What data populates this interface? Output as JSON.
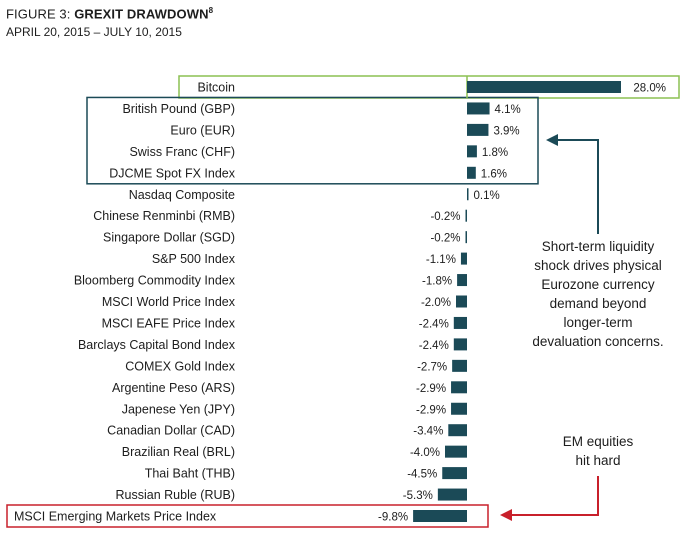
{
  "header": {
    "figure_prefix": "FIGURE 3: ",
    "title": "GREXIT DRAWDOWN",
    "title_note": "8",
    "subtitle": "APRIL 20, 2015 – JULY 10, 2015"
  },
  "chart_data": {
    "type": "bar",
    "orientation": "horizontal",
    "title": "GREXIT DRAWDOWN",
    "subtitle": "APRIL 20, 2015 – JULY 10, 2015",
    "xlim": [
      -10.5,
      30
    ],
    "categories": [
      "Bitcoin",
      "British Pound (GBP)",
      "Euro (EUR)",
      "Swiss Franc (CHF)",
      "DJCME Spot FX Index",
      "Nasdaq Composite",
      "Chinese Renminbi (RMB)",
      "Singapore Dollar (SGD)",
      "S&P 500 Index",
      "Bloomberg Commodity Index",
      "MSCI World Price Index",
      "MSCI EAFE Price Index",
      "Barclays Capital Bond Index",
      "COMEX Gold Index",
      "Argentine Peso (ARS)",
      "Japenese Yen (JPY)",
      "Canadian Dollar (CAD)",
      "Brazilian Real (BRL)",
      "Thai Baht (THB)",
      "Russian Ruble (RUB)",
      "MSCI Emerging Markets Price Index"
    ],
    "values": [
      28.0,
      4.1,
      3.9,
      1.8,
      1.6,
      0.1,
      -0.2,
      -0.2,
      -1.1,
      -1.8,
      -2.0,
      -2.4,
      -2.4,
      -2.7,
      -2.9,
      -2.9,
      -3.4,
      -4.0,
      -4.5,
      -5.3,
      -9.8
    ],
    "value_labels": [
      "28.0%",
      "4.1%",
      "3.9%",
      "1.8%",
      "1.6%",
      "0.1%",
      "-0.2%",
      "-0.2%",
      "-1.1%",
      "-1.8%",
      "-2.0%",
      "-2.4%",
      "-2.4%",
      "-2.7%",
      "-2.9%",
      "-2.9%",
      "-3.4%",
      "-4.0%",
      "-4.5%",
      "-5.3%",
      "-9.8%"
    ],
    "bar_color": "#1b4a57",
    "highlight_boxes": [
      {
        "name": "bitcoin-box",
        "rows": [
          0,
          0
        ],
        "color": "#8cc152"
      },
      {
        "name": "fx-group-box",
        "rows": [
          1,
          4
        ],
        "color": "#1b4a57"
      },
      {
        "name": "em-box",
        "rows": [
          20,
          20
        ],
        "color": "#c8202b"
      }
    ],
    "annotations": [
      {
        "name": "liquidity-note",
        "lines": [
          "Short-term liquidity",
          "shock drives physical",
          "Eurozone currency",
          "demand beyond",
          "longer-term",
          "devaluation concerns."
        ],
        "arrow_color": "#1b4a57"
      },
      {
        "name": "em-note",
        "lines": [
          "EM equities",
          "hit hard"
        ],
        "arrow_color": "#c8202b"
      }
    ]
  }
}
